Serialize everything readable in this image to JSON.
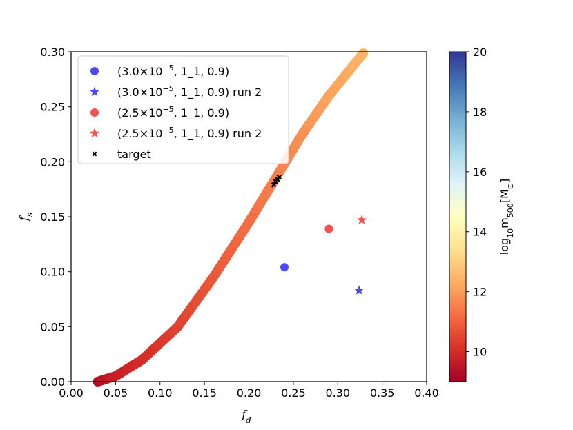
{
  "chart_data": {
    "type": "scatter",
    "xlabel": "f",
    "xlabel_sub": "d",
    "ylabel": "f",
    "ylabel_sub": "s",
    "xlim": [
      0.0,
      0.4
    ],
    "ylim": [
      0.0,
      0.3
    ],
    "xticks": [
      "0.00",
      "0.05",
      "0.10",
      "0.15",
      "0.20",
      "0.25",
      "0.30",
      "0.35",
      "0.40"
    ],
    "yticks": [
      "0.00",
      "0.05",
      "0.10",
      "0.15",
      "0.20",
      "0.25",
      "0.30"
    ],
    "grid": false,
    "legend_position": "top-left",
    "colorbar": {
      "label_prefix": "log",
      "label_sub": "10",
      "label_mid": "m",
      "label_sub2": "500",
      "label_unit": "[M",
      "label_unit_sub": "⊙",
      "label_close": "]",
      "range": [
        9,
        20
      ],
      "ticks": [
        "10",
        "12",
        "14",
        "16",
        "18",
        "20"
      ],
      "colormap": "RdYlBu_r"
    },
    "curve": {
      "description_values": [
        {
          "x": 0.03,
          "y": 0.0,
          "logm": 9.3
        },
        {
          "x": 0.05,
          "y": 0.005,
          "logm": 9.7
        },
        {
          "x": 0.08,
          "y": 0.02,
          "logm": 10.0
        },
        {
          "x": 0.12,
          "y": 0.05,
          "logm": 10.4
        },
        {
          "x": 0.16,
          "y": 0.095,
          "logm": 10.8
        },
        {
          "x": 0.2,
          "y": 0.145,
          "logm": 11.2
        },
        {
          "x": 0.23,
          "y": 0.185,
          "logm": 11.5
        },
        {
          "x": 0.26,
          "y": 0.225,
          "logm": 11.8
        },
        {
          "x": 0.29,
          "y": 0.26,
          "logm": 12.1
        },
        {
          "x": 0.33,
          "y": 0.3,
          "logm": 12.4
        }
      ]
    },
    "series": [
      {
        "name": "(3.0×10",
        "sup": "−5",
        "rest": ", 1_1, 0.9)",
        "marker": "circle",
        "color": "#2b2bee",
        "points": [
          {
            "x": 0.24,
            "y": 0.104
          }
        ]
      },
      {
        "name": "(3.0×10",
        "sup": "−5",
        "rest": ", 1_1, 0.9) run 2",
        "marker": "star",
        "color": "#2b2bee",
        "points": [
          {
            "x": 0.324,
            "y": 0.083
          }
        ]
      },
      {
        "name": "(2.5×10",
        "sup": "−5",
        "rest": ", 1_1, 0.9)",
        "marker": "circle",
        "color": "#ee3333",
        "points": [
          {
            "x": 0.29,
            "y": 0.139
          }
        ]
      },
      {
        "name": "(2.5×10",
        "sup": "−5",
        "rest": ", 1_1, 0.9) run 2",
        "marker": "star",
        "color": "#ee3333",
        "points": [
          {
            "x": 0.327,
            "y": 0.147
          }
        ]
      },
      {
        "name": "target",
        "sup": "",
        "rest": "",
        "marker": "x",
        "color": "#000000",
        "points": [
          {
            "x": 0.228,
            "y": 0.179
          },
          {
            "x": 0.23,
            "y": 0.182
          },
          {
            "x": 0.232,
            "y": 0.184
          },
          {
            "x": 0.234,
            "y": 0.186
          }
        ]
      }
    ]
  }
}
